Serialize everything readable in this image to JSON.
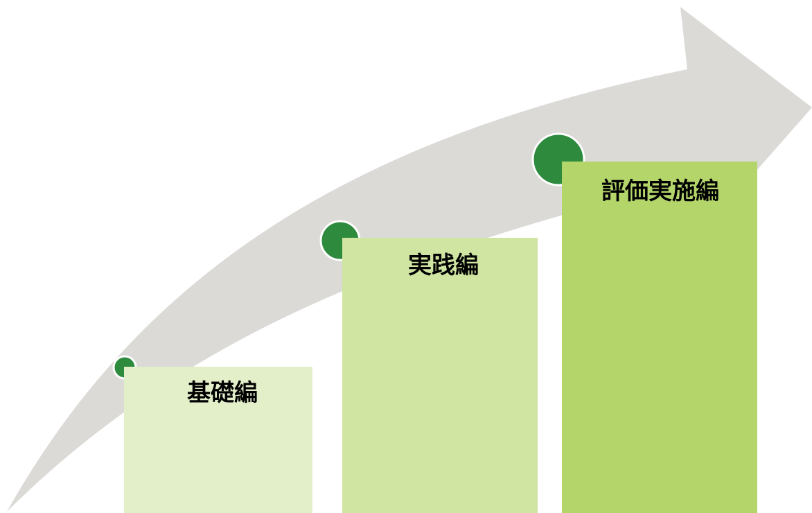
{
  "colors": {
    "arrow": "#dcdad7",
    "dot": "#2e8b3e",
    "dot_border": "#ffffff",
    "step_1": "#e2efc9",
    "step_2": "#d0e5a1",
    "step_3": "#b3d56a",
    "label": "#000000"
  },
  "steps": [
    {
      "label": "基礎編"
    },
    {
      "label": "実践編"
    },
    {
      "label": "評価実施編"
    }
  ]
}
